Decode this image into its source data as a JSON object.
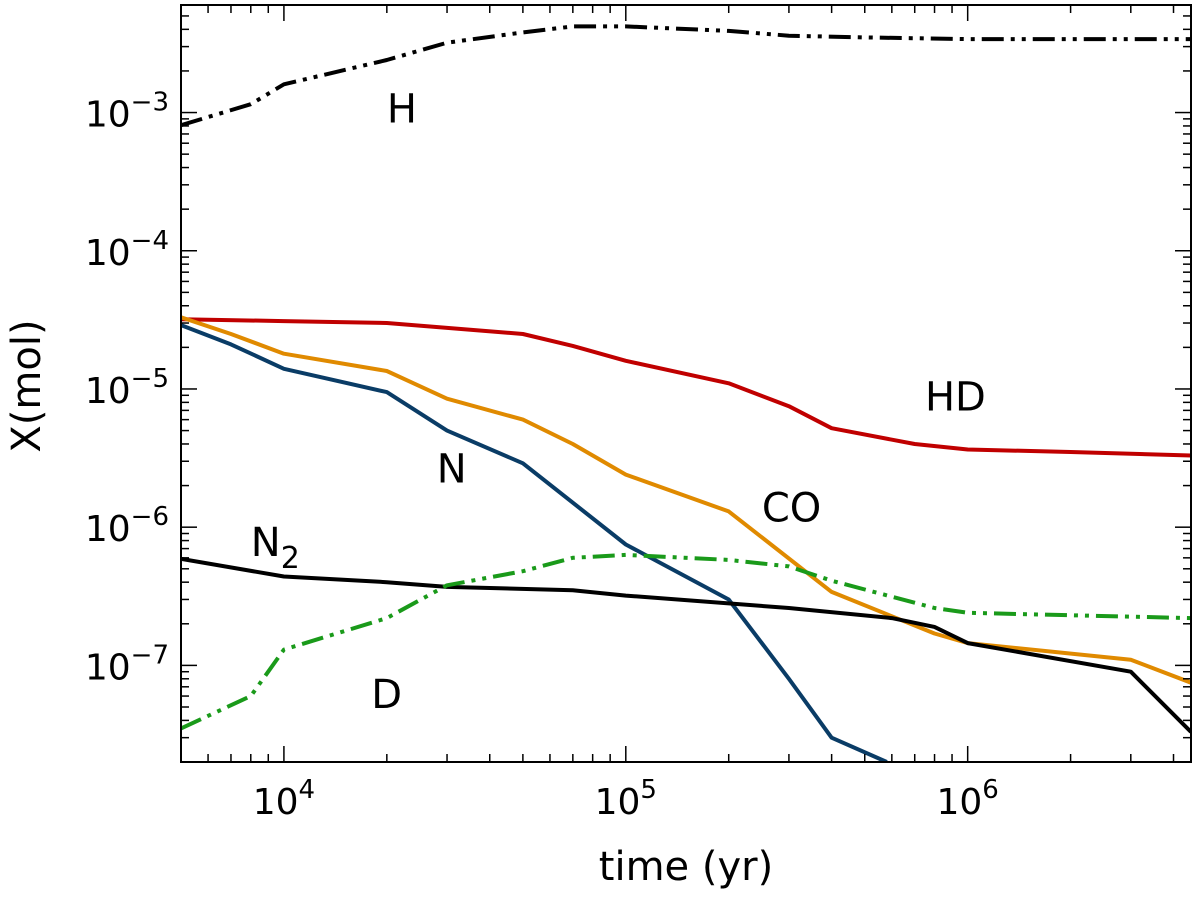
{
  "chart_data": {
    "type": "line",
    "title": "",
    "xlabel": "time (yr)",
    "ylabel": "X(mol)",
    "xscale": "log",
    "yscale": "log",
    "xlim": [
      5000,
      4500000
    ],
    "ylim": [
      2e-08,
      0.006
    ],
    "grid": false,
    "x_ticks": [
      {
        "value": 10000,
        "base": "10",
        "exp": "4"
      },
      {
        "value": 100000,
        "base": "10",
        "exp": "5"
      },
      {
        "value": 1000000,
        "base": "10",
        "exp": "6"
      }
    ],
    "y_ticks": [
      {
        "value": 1e-07,
        "base": "10",
        "exp": "−7"
      },
      {
        "value": 1e-06,
        "base": "10",
        "exp": "−6"
      },
      {
        "value": 1e-05,
        "base": "10",
        "exp": "−5"
      },
      {
        "value": 0.0001,
        "base": "10",
        "exp": "−4"
      },
      {
        "value": 0.001,
        "base": "10",
        "exp": "−3"
      }
    ],
    "series": [
      {
        "name": "H",
        "color": "#000000",
        "style": "dashdotdot",
        "label": {
          "text": "H",
          "sub": "",
          "x": 20000,
          "y": 0.00085
        },
        "points": [
          [
            5000,
            0.00081
          ],
          [
            8000,
            0.00115
          ],
          [
            10000,
            0.0016
          ],
          [
            20000,
            0.0024
          ],
          [
            30000,
            0.0032
          ],
          [
            50000,
            0.0038
          ],
          [
            70000,
            0.0042
          ],
          [
            100000,
            0.0042
          ],
          [
            200000,
            0.0039
          ],
          [
            300000,
            0.0036
          ],
          [
            500000,
            0.0035
          ],
          [
            1000000,
            0.0034
          ],
          [
            4500000,
            0.0034
          ]
        ]
      },
      {
        "name": "HD",
        "color": "#c00000",
        "style": "solid",
        "label": {
          "text": "HD",
          "sub": "",
          "x": 750000,
          "y": 7e-06
        },
        "points": [
          [
            5000,
            3.2e-05
          ],
          [
            10000,
            3.1e-05
          ],
          [
            20000,
            3e-05
          ],
          [
            50000,
            2.5e-05
          ],
          [
            70000,
            2.05e-05
          ],
          [
            100000,
            1.6e-05
          ],
          [
            200000,
            1.1e-05
          ],
          [
            300000,
            7.5e-06
          ],
          [
            400000,
            5.2e-06
          ],
          [
            700000,
            4e-06
          ],
          [
            1000000,
            3.65e-06
          ],
          [
            2000000,
            3.5e-06
          ],
          [
            4500000,
            3.3e-06
          ]
        ]
      },
      {
        "name": "CO",
        "color": "#e08a00",
        "style": "solid",
        "label": {
          "text": "CO",
          "sub": "",
          "x": 250000,
          "y": 1.1e-06
        },
        "points": [
          [
            5000,
            3.3e-05
          ],
          [
            7000,
            2.5e-05
          ],
          [
            10000,
            1.8e-05
          ],
          [
            20000,
            1.35e-05
          ],
          [
            30000,
            8.5e-06
          ],
          [
            50000,
            6e-06
          ],
          [
            70000,
            4e-06
          ],
          [
            100000,
            2.4e-06
          ],
          [
            200000,
            1.3e-06
          ],
          [
            400000,
            3.4e-07
          ],
          [
            800000,
            1.7e-07
          ],
          [
            1000000,
            1.45e-07
          ],
          [
            3000000,
            1.1e-07
          ],
          [
            4500000,
            7.5e-08
          ]
        ]
      },
      {
        "name": "N",
        "color": "#0a3c66",
        "style": "solid",
        "label": {
          "text": "N",
          "sub": "",
          "x": 28000,
          "y": 2.1e-06
        },
        "points": [
          [
            5000,
            2.9e-05
          ],
          [
            7000,
            2.1e-05
          ],
          [
            10000,
            1.4e-05
          ],
          [
            20000,
            9.5e-06
          ],
          [
            30000,
            5e-06
          ],
          [
            50000,
            2.9e-06
          ],
          [
            100000,
            7.5e-07
          ],
          [
            200000,
            3e-07
          ],
          [
            300000,
            8e-08
          ],
          [
            400000,
            3e-08
          ],
          [
            580000,
            2e-08
          ]
        ]
      },
      {
        "name": "N2",
        "color": "#000000",
        "style": "solid",
        "label": {
          "text": "N",
          "sub": "2",
          "x": 8000,
          "y": 6.2e-07
        },
        "points": [
          [
            5000,
            5.9e-07
          ],
          [
            10000,
            4.4e-07
          ],
          [
            20000,
            4e-07
          ],
          [
            30000,
            3.7e-07
          ],
          [
            70000,
            3.5e-07
          ],
          [
            100000,
            3.2e-07
          ],
          [
            300000,
            2.6e-07
          ],
          [
            600000,
            2.2e-07
          ],
          [
            800000,
            1.9e-07
          ],
          [
            1000000,
            1.45e-07
          ],
          [
            3000000,
            9e-08
          ],
          [
            4500000,
            3.3e-08
          ]
        ]
      },
      {
        "name": "D",
        "color": "#1a9a1a",
        "style": "dashdotdot",
        "label": {
          "text": "D",
          "sub": "",
          "x": 18000,
          "y": 4.9e-08
        },
        "points": [
          [
            5000,
            3.5e-08
          ],
          [
            8000,
            6e-08
          ],
          [
            10000,
            1.3e-07
          ],
          [
            20000,
            2.2e-07
          ],
          [
            30000,
            3.8e-07
          ],
          [
            50000,
            4.8e-07
          ],
          [
            70000,
            6e-07
          ],
          [
            100000,
            6.3e-07
          ],
          [
            200000,
            5.8e-07
          ],
          [
            300000,
            5.2e-07
          ],
          [
            400000,
            4.1e-07
          ],
          [
            800000,
            2.6e-07
          ],
          [
            1000000,
            2.4e-07
          ],
          [
            4500000,
            2.2e-07
          ]
        ]
      }
    ]
  }
}
